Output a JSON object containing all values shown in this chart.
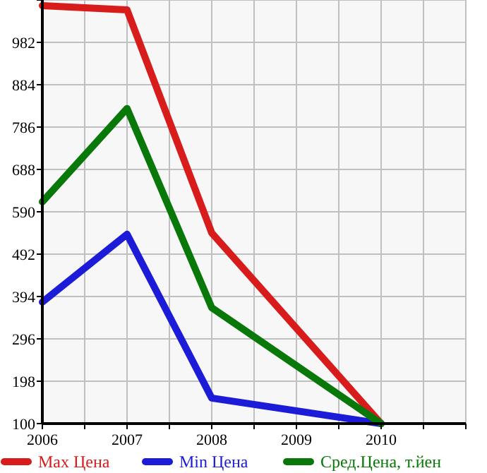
{
  "chart_data": {
    "type": "line",
    "x": [
      2006,
      2007,
      2008,
      2010
    ],
    "series": [
      {
        "name": "Max Цена",
        "color": "#d81c1c",
        "values": [
          1067,
          1057,
          541,
          100
        ]
      },
      {
        "name": "Min Цена",
        "color": "#1c1cd8",
        "values": [
          381,
          538,
          159,
          100
        ]
      },
      {
        "name": "Сред.Цена, т.йен",
        "color": "#087808",
        "values": [
          613,
          829,
          368,
          100
        ]
      }
    ],
    "xlim": [
      2006,
      2011
    ],
    "xticks": [
      2006,
      {
        "value": 2006.5,
        "label": null
      },
      2007,
      {
        "value": 2007.5,
        "label": null
      },
      2008,
      {
        "value": 2008.5,
        "label": null
      },
      2009,
      {
        "value": 2009.5,
        "label": null
      },
      2010,
      {
        "value": 2010.5,
        "label": null
      },
      {
        "value": 2011,
        "label": null
      }
    ],
    "ylim": [
      100,
      1080
    ],
    "yticks": [
      100,
      198,
      296,
      394,
      492,
      590,
      688,
      786,
      884,
      982,
      {
        "value": 1080,
        "label": null
      }
    ],
    "grid": true,
    "legend": "bottom",
    "marker": "none",
    "line_style": "solid"
  }
}
